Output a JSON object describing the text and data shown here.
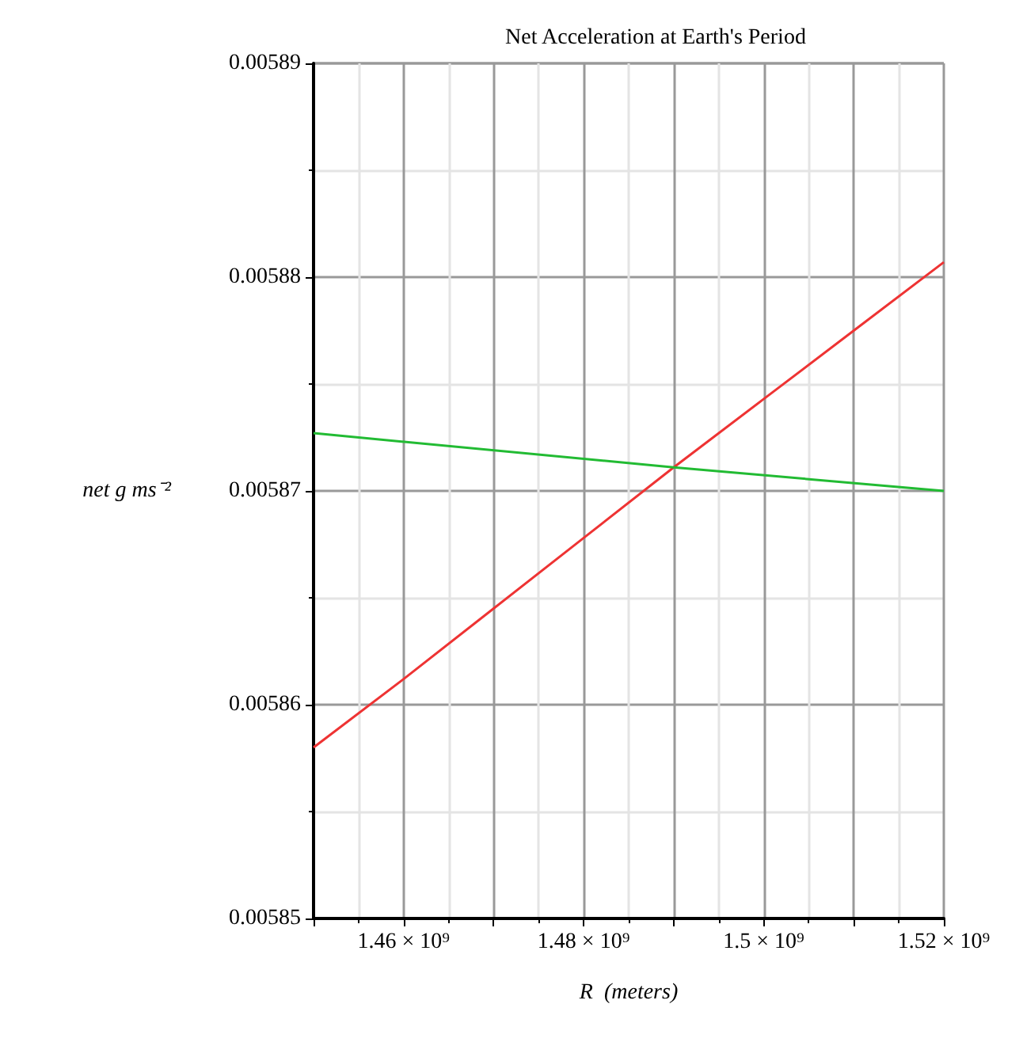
{
  "chart_data": {
    "type": "line",
    "title": "Net Acceleration at Earth's Period",
    "xlabel": "R  (meters)",
    "ylabel": "net g ms⁻²",
    "xlim": [
      1450000000,
      1520000000
    ],
    "xticks": [
      {
        "value": 1450000000,
        "label": null
      },
      {
        "value": 1460000000,
        "label": "1.46 × 10⁹"
      },
      {
        "value": 1470000000,
        "label": null
      },
      {
        "value": 1480000000,
        "label": "1.48 × 10⁹"
      },
      {
        "value": 1490000000,
        "label": null
      },
      {
        "value": 1500000000,
        "label": "1.5 × 10⁹"
      },
      {
        "value": 1510000000,
        "label": null
      },
      {
        "value": 1520000000,
        "label": "1.52 × 10⁹"
      }
    ],
    "ylim": [
      0.00585,
      0.00589
    ],
    "yticks": [
      0.00585,
      0.00586,
      0.00587,
      0.00588,
      0.00589
    ],
    "grid": true,
    "marker": "none",
    "line_style": "solid",
    "series": [
      {
        "color": "#ee3333",
        "x": [
          1450000000,
          1460000000,
          1470000000,
          1480000000,
          1490000000,
          1500000000,
          1510000000,
          1520000000
        ],
        "values": [
          0.005858,
          0.0058612,
          0.0058645,
          0.0058678,
          0.0058711,
          0.0058743,
          0.0058775,
          0.0058807
        ]
      },
      {
        "color": "#22bb33",
        "x": [
          1450000000,
          1490000000,
          1520000000
        ],
        "values": [
          0.0058727,
          0.0058711,
          0.00587
        ]
      }
    ]
  }
}
